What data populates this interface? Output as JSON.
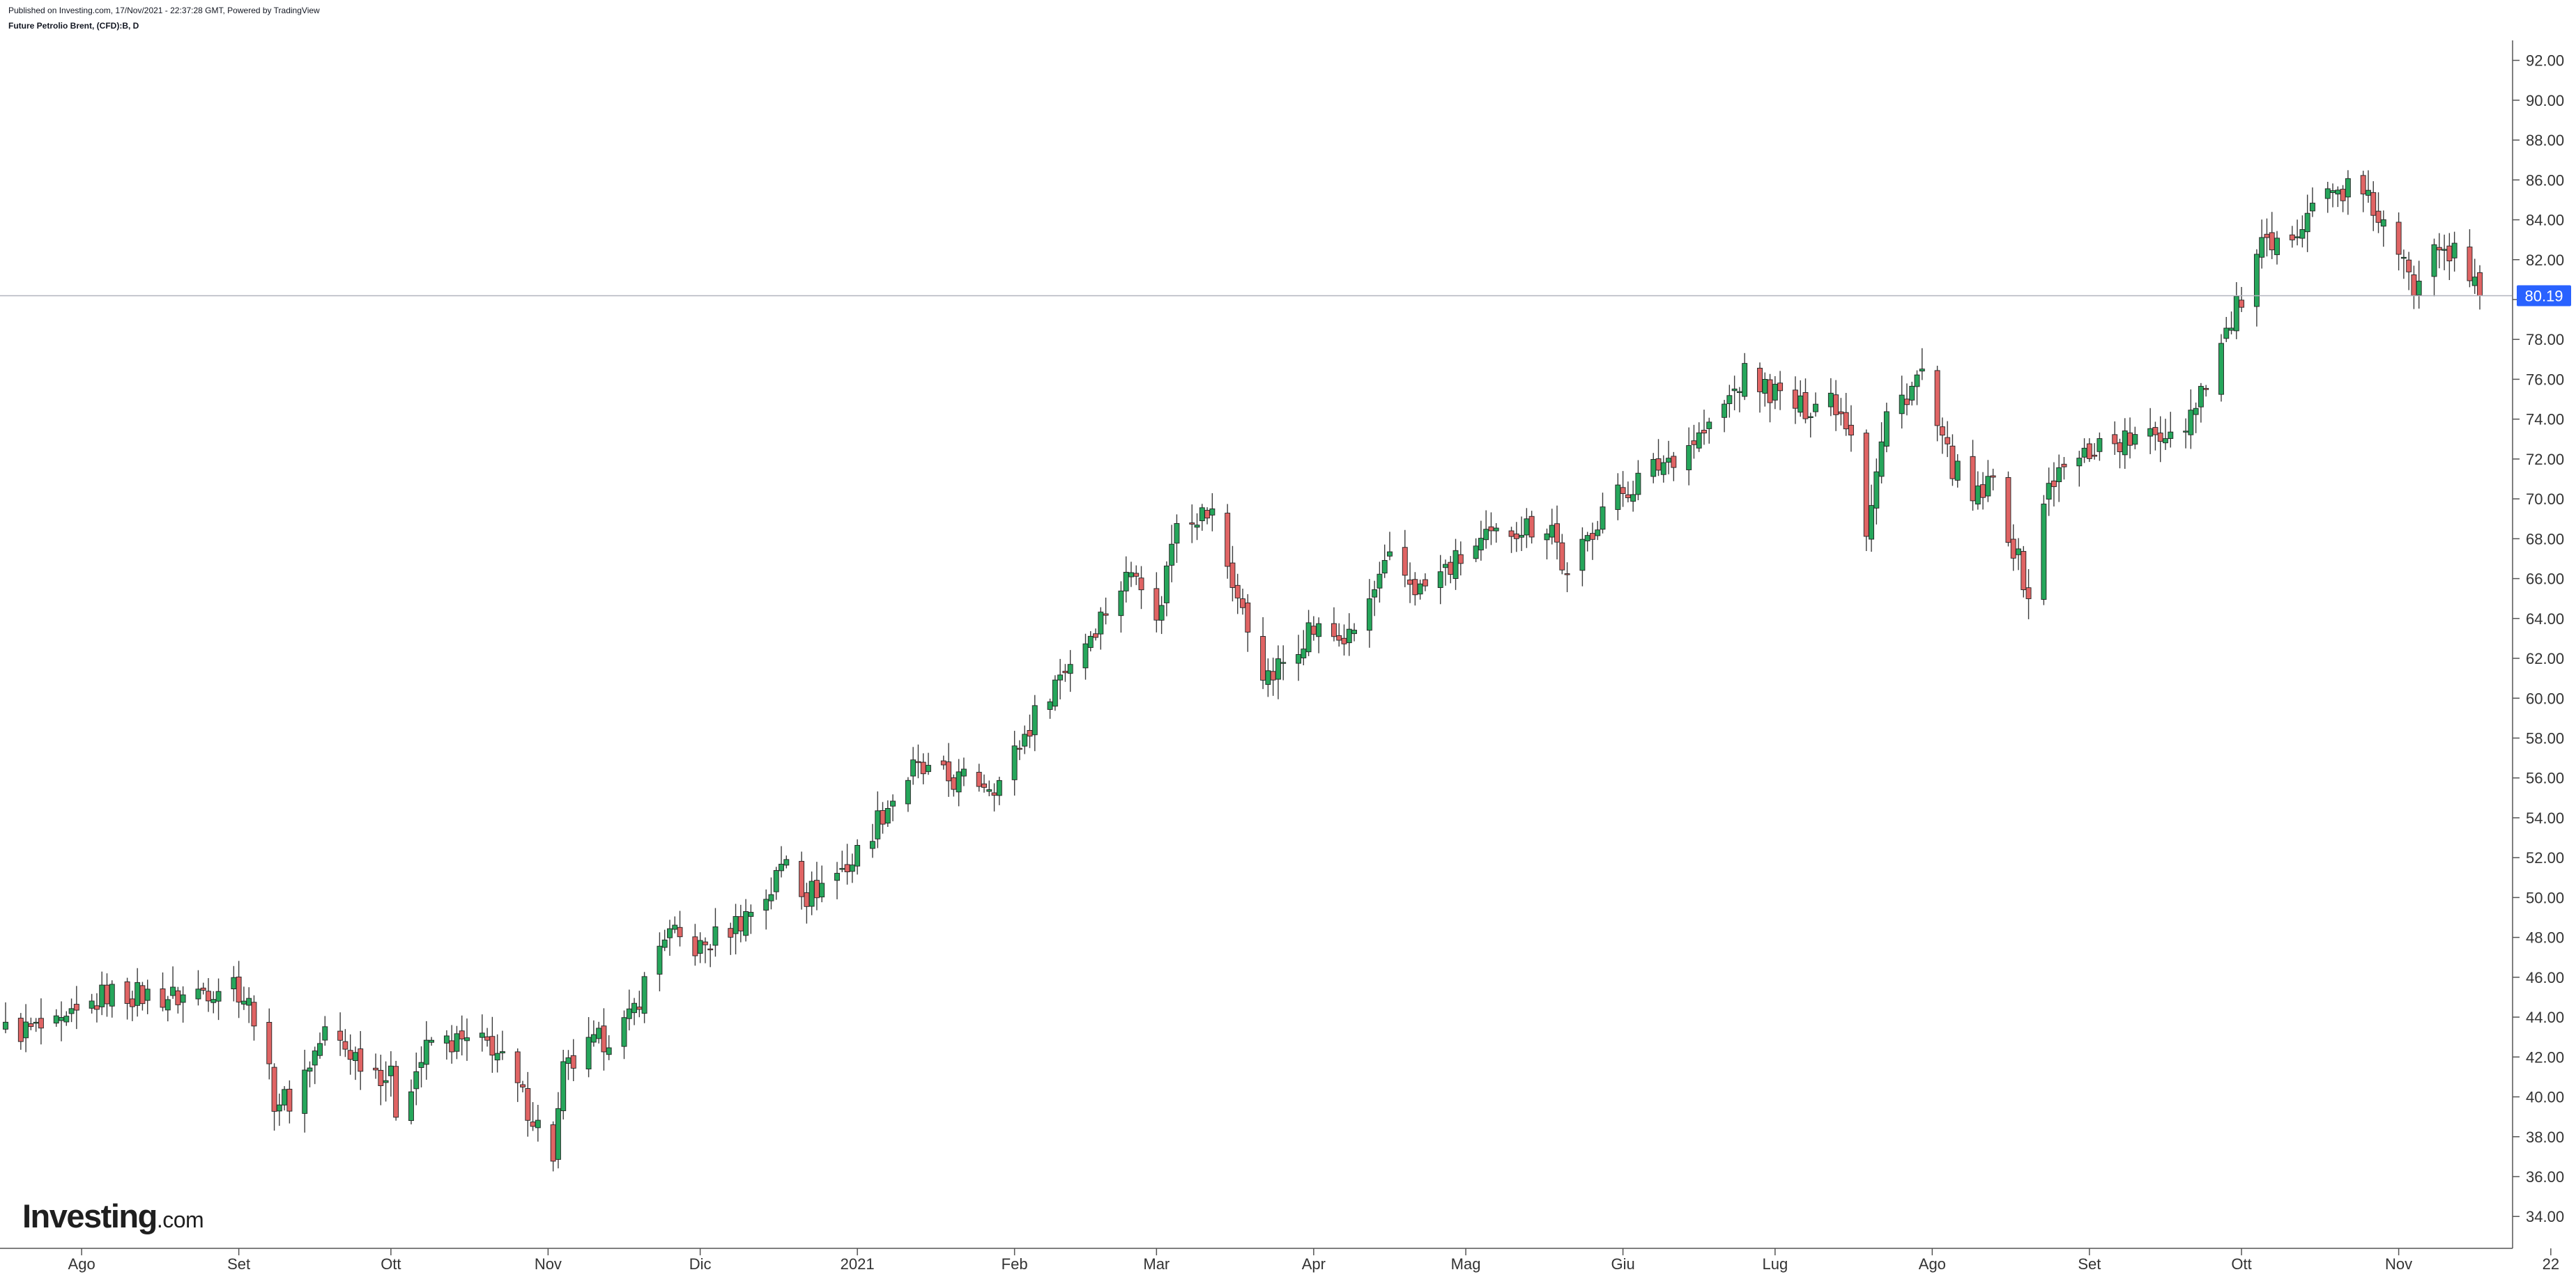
{
  "header": {
    "published": "Published on Investing.com, 17/Nov/2021 - 22:37:28 GMT, Powered by TradingView",
    "symbol": "Future Petrolio Brent, (CFD):B, D"
  },
  "logo": {
    "brand": "Investing",
    "domain": ".com"
  },
  "colors": {
    "up": "#26a65b",
    "down": "#e06464",
    "wick": "#3b3b3b",
    "axis": "#555555",
    "price_badge": "#2962ff",
    "price_line": "#b2b5be"
  },
  "chart_data": {
    "type": "candlestick",
    "title": "Future Petrolio Brent, (CFD):B, D",
    "y_ticks": [
      "34.00",
      "36.00",
      "38.00",
      "40.00",
      "42.00",
      "44.00",
      "46.00",
      "48.00",
      "50.00",
      "52.00",
      "54.00",
      "56.00",
      "58.00",
      "60.00",
      "62.00",
      "64.00",
      "66.00",
      "68.00",
      "70.00",
      "72.00",
      "74.00",
      "76.00",
      "78.00",
      "80.00",
      "82.00",
      "84.00",
      "86.00",
      "88.00",
      "90.00",
      "92.00"
    ],
    "ylim": [
      32.4,
      93.0
    ],
    "x_labels": [
      "Ago",
      "Set",
      "Ott",
      "Nov",
      "Dic",
      "2021",
      "Feb",
      "Mar",
      "Apr",
      "Mag",
      "Giu",
      "Lug",
      "Ago",
      "Set",
      "Ott",
      "Nov",
      "22"
    ],
    "last_price": "80.19",
    "last_value": 80.19,
    "grid": false,
    "anchors": [
      [
        "2020-07-17",
        43.3
      ],
      [
        "2020-07-28",
        43.4
      ],
      [
        "2020-08-06",
        45.2
      ],
      [
        "2020-08-20",
        45.0
      ],
      [
        "2020-08-31",
        45.8
      ],
      [
        "2020-09-04",
        44.2
      ],
      [
        "2020-09-08",
        39.9
      ],
      [
        "2020-09-11",
        39.8
      ],
      [
        "2020-09-18",
        43.2
      ],
      [
        "2020-09-25",
        41.9
      ],
      [
        "2020-10-01",
        40.9
      ],
      [
        "2020-10-02",
        39.4
      ],
      [
        "2020-10-09",
        42.8
      ],
      [
        "2020-10-21",
        42.6
      ],
      [
        "2020-10-28",
        39.5
      ],
      [
        "2020-11-02",
        37.1
      ],
      [
        "2020-11-04",
        41.2
      ],
      [
        "2020-11-09",
        42.4
      ],
      [
        "2020-11-17",
        43.8
      ],
      [
        "2020-11-24",
        48.2
      ],
      [
        "2020-12-01",
        47.4
      ],
      [
        "2020-12-09",
        48.9
      ],
      [
        "2020-12-15",
        50.4
      ],
      [
        "2020-12-18",
        52.2
      ],
      [
        "2020-12-22",
        50.1
      ],
      [
        "2020-12-31",
        51.8
      ],
      [
        "2021-01-06",
        54.3
      ],
      [
        "2021-01-12",
        56.4
      ],
      [
        "2021-01-19",
        55.9
      ],
      [
        "2021-01-29",
        55.8
      ],
      [
        "2021-02-08",
        60.5
      ],
      [
        "2021-02-16",
        63.3
      ],
      [
        "2021-02-25",
        66.8
      ],
      [
        "2021-03-01",
        63.6
      ],
      [
        "2021-03-05",
        69.3
      ],
      [
        "2021-03-12",
        69.2
      ],
      [
        "2021-03-18",
        64.2
      ],
      [
        "2021-03-23",
        60.8
      ],
      [
        "2021-03-31",
        63.5
      ],
      [
        "2021-04-08",
        62.9
      ],
      [
        "2021-04-16",
        66.8
      ],
      [
        "2021-04-22",
        65.4
      ],
      [
        "2021-05-03",
        67.6
      ],
      [
        "2021-05-11",
        68.6
      ],
      [
        "2021-05-18",
        68.7
      ],
      [
        "2021-05-21",
        65.8
      ],
      [
        "2021-05-28",
        69.6
      ],
      [
        "2021-06-07",
        71.5
      ],
      [
        "2021-06-18",
        73.5
      ],
      [
        "2021-06-25",
        76.2
      ],
      [
        "2021-07-06",
        74.5
      ],
      [
        "2021-07-12",
        75.2
      ],
      [
        "2021-07-16",
        73.6
      ],
      [
        "2021-07-19",
        68.6
      ],
      [
        "2021-07-23",
        74.1
      ],
      [
        "2021-07-30",
        76.3
      ],
      [
        "2021-08-03",
        72.6
      ],
      [
        "2021-08-09",
        69.8
      ],
      [
        "2021-08-13",
        70.8
      ],
      [
        "2021-08-20",
        65.2
      ],
      [
        "2021-08-24",
        70.8
      ],
      [
        "2021-09-03",
        72.8
      ],
      [
        "2021-09-13",
        73.0
      ],
      [
        "2021-09-20",
        73.9
      ],
      [
        "2021-09-28",
        78.3
      ],
      [
        "2021-10-05",
        82.5
      ],
      [
        "2021-10-08",
        82.4
      ],
      [
        "2021-10-15",
        84.9
      ],
      [
        "2021-10-22",
        85.6
      ],
      [
        "2021-10-27",
        84.6
      ],
      [
        "2021-11-04",
        80.6
      ],
      [
        "2021-11-08",
        83.4
      ],
      [
        "2021-11-12",
        82.2
      ],
      [
        "2021-11-17",
        80.19
      ]
    ]
  }
}
